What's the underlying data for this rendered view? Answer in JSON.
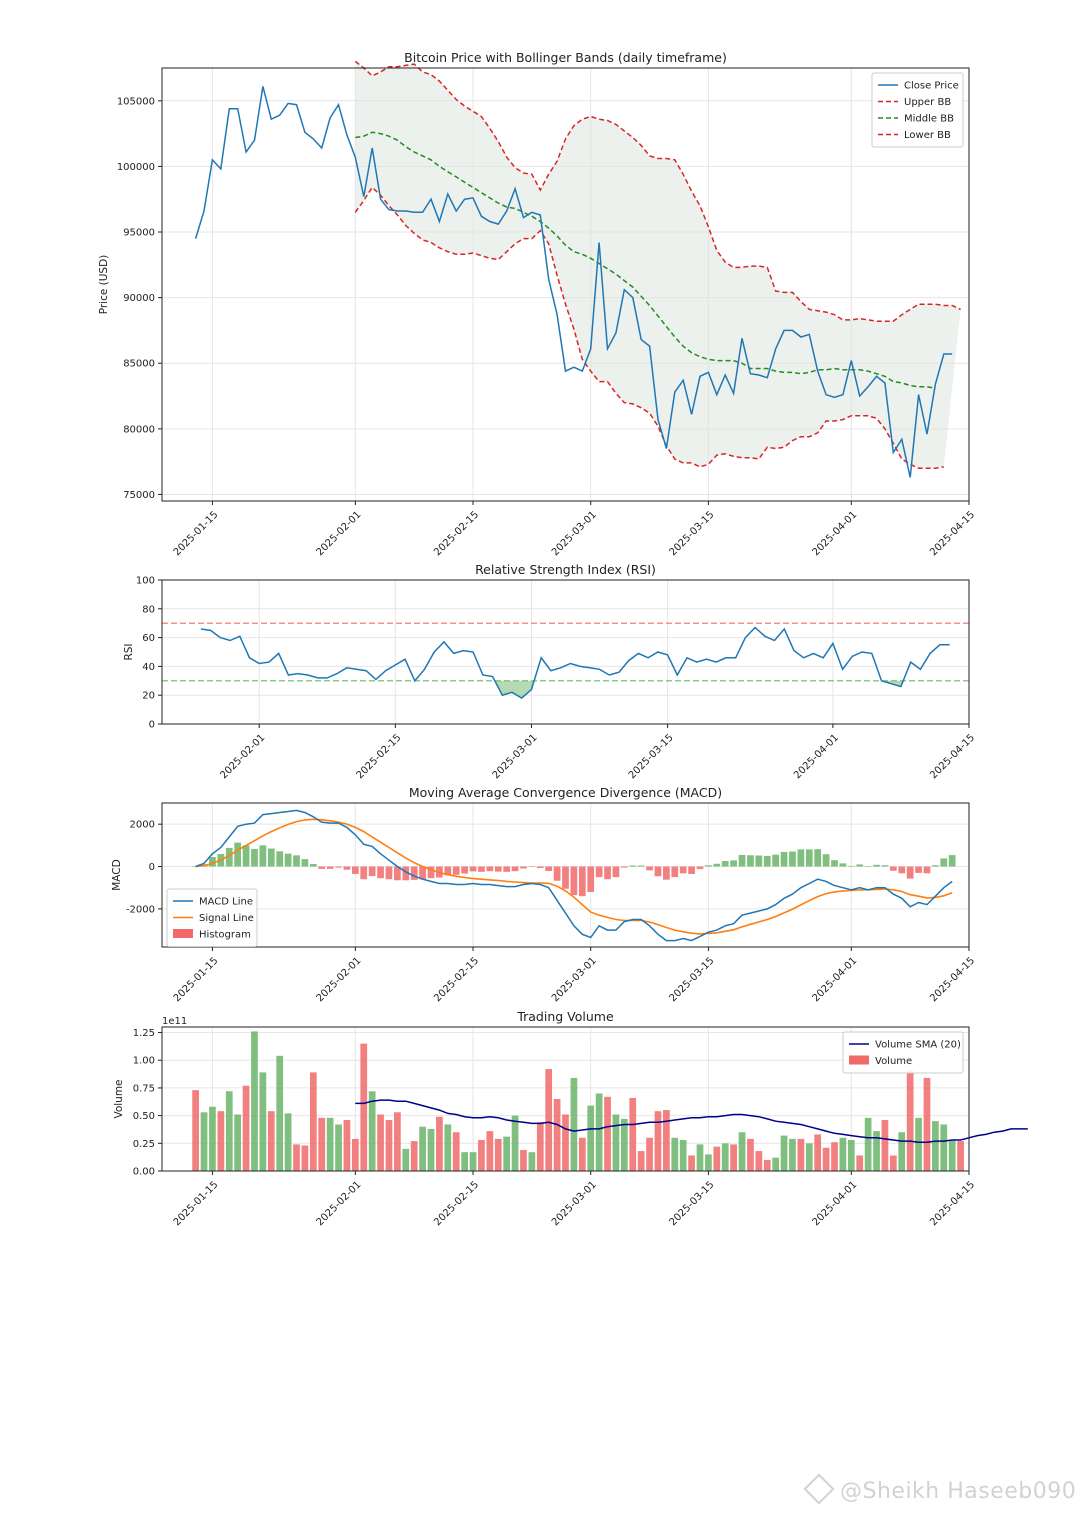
{
  "chart_data": [
    {
      "type": "line",
      "title": "Bitcoin Price with Bollinger Bands (daily timeframe)",
      "xlabel": "",
      "ylabel": "Price (USD)",
      "x_start": "2025-01-13",
      "xlim": [
        "2025-01-09",
        "2025-04-15"
      ],
      "ylim": [
        74500,
        107500
      ],
      "yticks": [
        75000,
        80000,
        85000,
        90000,
        95000,
        100000,
        105000
      ],
      "xticks": [
        "2025-01-15",
        "2025-02-01",
        "2025-02-15",
        "2025-03-01",
        "2025-03-15",
        "2025-04-01",
        "2025-04-15"
      ],
      "grid": true,
      "legend": "top-right",
      "series": [
        {
          "name": "Close Price",
          "color": "#1f77b4",
          "style": "solid",
          "start": "2025-01-13",
          "values": [
            94500,
            96600,
            100500,
            99800,
            104400,
            104400,
            101100,
            102000,
            106100,
            103600,
            103900,
            104800,
            104700,
            102600,
            102100,
            101400,
            103700,
            104700,
            102400,
            100700,
            97700,
            101400,
            97500,
            96700,
            96600,
            96600,
            96500,
            96500,
            97500,
            95800,
            97900,
            96600,
            97500,
            97600,
            96200,
            95800,
            95600,
            96600,
            98300,
            96100,
            96500,
            96300,
            91400,
            88700,
            84400,
            84700,
            84400,
            86100,
            94200,
            86100,
            87300,
            90600,
            90000,
            86800,
            86300,
            80700,
            78500,
            82800,
            83700,
            81100,
            84000,
            84300,
            82600,
            84100,
            82700,
            86900,
            84200,
            84100,
            83900,
            86100,
            87500,
            87500,
            87000,
            87200,
            84400,
            82600,
            82400,
            82600,
            85200,
            82500,
            83200,
            84000,
            83500,
            78200,
            79200,
            76300,
            82600,
            79600,
            83400,
            85700,
            85700
          ]
        },
        {
          "name": "Upper BB",
          "color": "#d62728",
          "style": "dashed",
          "start": "2025-02-01",
          "values": [
            108000,
            107500,
            106900,
            107200,
            107600,
            107600,
            107700,
            107800,
            107200,
            107000,
            106500,
            105800,
            105100,
            104600,
            104200,
            103800,
            102900,
            101900,
            100700,
            99900,
            99500,
            99400,
            98200,
            99400,
            100400,
            102100,
            103100,
            103600,
            103800,
            103600,
            103500,
            103200,
            102700,
            102200,
            101600,
            100800,
            100600,
            100600,
            100500,
            99400,
            98100,
            97000,
            95400,
            93600,
            92700,
            92300,
            92300,
            92400,
            92400,
            92300,
            90500,
            90400,
            90400,
            89700,
            89100,
            89000,
            88900,
            88700,
            88300,
            88300,
            88400,
            88300,
            88200,
            88200,
            88200,
            88700,
            89100,
            89500,
            89500,
            89500,
            89400,
            89400,
            89100
          ]
        },
        {
          "name": "Middle BB",
          "color": "#228B22",
          "style": "dashed",
          "start": "2025-02-01",
          "values": [
            102200,
            102300,
            102600,
            102500,
            102300,
            102000,
            101500,
            101100,
            100800,
            100500,
            100000,
            99600,
            99200,
            98800,
            98400,
            98000,
            97600,
            97200,
            96900,
            96800,
            96500,
            96200,
            95800,
            95300,
            94700,
            94000,
            93500,
            93300,
            93000,
            92600,
            92200,
            91800,
            91300,
            90800,
            90100,
            89400,
            88600,
            87800,
            87000,
            86300,
            85800,
            85500,
            85300,
            85200,
            85200,
            85200,
            85000,
            84600,
            84600,
            84600,
            84400,
            84300,
            84300,
            84200,
            84300,
            84500,
            84500,
            84600,
            84500,
            84500,
            84500,
            84400,
            84200,
            84000,
            83600,
            83500,
            83300,
            83200,
            83200,
            83100
          ]
        },
        {
          "name": "Lower BB",
          "color": "#d62728",
          "style": "dashed",
          "start": "2025-02-01",
          "values": [
            96500,
            97400,
            98400,
            97800,
            97000,
            96300,
            95500,
            94900,
            94400,
            94200,
            93800,
            93500,
            93300,
            93300,
            93400,
            93200,
            93000,
            92900,
            93500,
            94100,
            94500,
            94500,
            95100,
            94100,
            91700,
            89500,
            87600,
            85300,
            84400,
            83600,
            83600,
            82700,
            82000,
            81900,
            81600,
            81200,
            80200,
            78700,
            77700,
            77400,
            77400,
            77100,
            77300,
            78000,
            78100,
            77900,
            77800,
            77800,
            77700,
            78600,
            78500,
            78600,
            79100,
            79400,
            79400,
            79700,
            80600,
            80600,
            80700,
            81000,
            81000,
            81000,
            80800,
            80000,
            78900,
            77700,
            77300,
            77000,
            77000,
            77000,
            77100
          ]
        }
      ],
      "band_fill": "#dfe6df"
    },
    {
      "type": "line",
      "title": "Relative Strength Index (RSI)",
      "xlabel": "",
      "ylabel": "RSI",
      "xlim": [
        "2025-01-22",
        "2025-04-15"
      ],
      "ylim": [
        0,
        100
      ],
      "yticks": [
        0,
        20,
        40,
        60,
        80,
        100
      ],
      "xticks": [
        "2025-02-01",
        "2025-02-15",
        "2025-03-01",
        "2025-03-15",
        "2025-04-01",
        "2025-04-15"
      ],
      "grid": true,
      "overbought": 70,
      "oversold": 30,
      "series": [
        {
          "name": "RSI",
          "color": "#1f77b4",
          "start": "2025-01-26",
          "values": [
            66,
            65,
            60,
            58,
            61,
            46,
            42,
            43,
            49,
            34,
            35,
            34,
            32,
            32,
            35,
            39,
            38,
            37,
            31,
            37,
            41,
            45,
            30,
            38,
            50,
            57,
            49,
            51,
            50,
            34,
            33,
            20,
            22,
            18,
            24,
            46,
            37,
            39,
            42,
            40,
            39,
            38,
            34,
            36,
            44,
            49,
            46,
            50,
            48,
            34,
            46,
            43,
            45,
            43,
            46,
            46,
            60,
            67,
            61,
            58,
            66,
            51,
            46,
            49,
            46,
            56,
            38,
            47,
            50,
            49,
            30,
            28,
            26,
            43,
            38,
            49,
            55,
            55
          ]
        }
      ]
    },
    {
      "type": "line",
      "title": "Moving Average Convergence Divergence (MACD)",
      "xlabel": "",
      "ylabel": "MACD",
      "xlim": [
        "2025-01-09",
        "2025-04-15"
      ],
      "ylim": [
        -3800,
        3000
      ],
      "yticks": [
        -2000,
        0,
        2000
      ],
      "xticks": [
        "2025-01-15",
        "2025-02-01",
        "2025-02-15",
        "2025-03-01",
        "2025-03-15",
        "2025-04-01",
        "2025-04-15"
      ],
      "grid": true,
      "legend": "bottom-left",
      "series": [
        {
          "name": "MACD Line",
          "color": "#1f77b4",
          "start": "2025-01-13",
          "values": [
            0,
            150,
            600,
            900,
            1400,
            1900,
            2000,
            2050,
            2450,
            2500,
            2550,
            2600,
            2650,
            2550,
            2350,
            2100,
            2050,
            2050,
            1850,
            1500,
            1050,
            950,
            600,
            300,
            0,
            -250,
            -450,
            -600,
            -700,
            -800,
            -800,
            -850,
            -850,
            -800,
            -850,
            -850,
            -900,
            -950,
            -950,
            -850,
            -800,
            -850,
            -1000,
            -1600,
            -2200,
            -2800,
            -3200,
            -3350,
            -2800,
            -3000,
            -3000,
            -2600,
            -2500,
            -2500,
            -2800,
            -3200,
            -3500,
            -3500,
            -3400,
            -3500,
            -3300,
            -3100,
            -3000,
            -2800,
            -2700,
            -2300,
            -2200,
            -2100,
            -2000,
            -1800,
            -1500,
            -1300,
            -1000,
            -800,
            -600,
            -700,
            -900,
            -1000,
            -1100,
            -1000,
            -1100,
            -1000,
            -1000,
            -1300,
            -1500,
            -1900,
            -1700,
            -1800,
            -1400,
            -1000,
            -700
          ]
        },
        {
          "name": "Signal Line",
          "color": "#ff7f0e",
          "start": "2025-01-13",
          "values": [
            0,
            40,
            150,
            310,
            520,
            770,
            1000,
            1220,
            1450,
            1650,
            1830,
            1990,
            2120,
            2200,
            2230,
            2210,
            2160,
            2100,
            2000,
            1850,
            1650,
            1400,
            1150,
            900,
            650,
            400,
            180,
            0,
            -150,
            -280,
            -380,
            -460,
            -520,
            -570,
            -600,
            -630,
            -660,
            -700,
            -730,
            -760,
            -780,
            -780,
            -790,
            -930,
            -1150,
            -1450,
            -1800,
            -2150,
            -2300,
            -2400,
            -2500,
            -2550,
            -2550,
            -2550,
            -2620,
            -2740,
            -2880,
            -3000,
            -3080,
            -3150,
            -3180,
            -3160,
            -3130,
            -3060,
            -2990,
            -2850,
            -2730,
            -2620,
            -2500,
            -2360,
            -2190,
            -2010,
            -1810,
            -1610,
            -1420,
            -1280,
            -1200,
            -1150,
            -1130,
            -1100,
            -1100,
            -1080,
            -1060,
            -1100,
            -1180,
            -1330,
            -1400,
            -1480,
            -1460,
            -1380,
            -1240
          ]
        }
      ],
      "histogram": {
        "name": "Histogram",
        "pos_color": "#6ab46a",
        "neg_color": "#f06a6a"
      }
    },
    {
      "type": "bar",
      "title": "Trading Volume",
      "xlabel": "",
      "ylabel": "Volume",
      "scale_label": "1e11",
      "xlim": [
        "2025-01-09",
        "2025-04-15"
      ],
      "ylim": [
        0,
        1.3
      ],
      "yticks": [
        0.0,
        0.25,
        0.5,
        0.75,
        1.0,
        1.25
      ],
      "ytick_labels": [
        "0.00",
        "0.25",
        "0.50",
        "0.75",
        "1.00",
        "1.25"
      ],
      "xticks": [
        "2025-01-15",
        "2025-02-01",
        "2025-02-15",
        "2025-03-01",
        "2025-03-15",
        "2025-04-01",
        "2025-04-15"
      ],
      "grid": true,
      "legend": "top-right",
      "bar_colors": {
        "up": "#6ab46a",
        "down": "#f06a6a"
      },
      "volume": {
        "name": "Volume",
        "start": "2025-01-13",
        "values": [
          0.73,
          0.53,
          0.58,
          0.54,
          0.72,
          0.51,
          0.77,
          1.26,
          0.89,
          0.54,
          1.04,
          0.52,
          0.24,
          0.23,
          0.89,
          0.48,
          0.48,
          0.42,
          0.46,
          0.29,
          1.15,
          0.72,
          0.51,
          0.46,
          0.53,
          0.2,
          0.27,
          0.4,
          0.38,
          0.49,
          0.42,
          0.35,
          0.17,
          0.17,
          0.28,
          0.36,
          0.29,
          0.31,
          0.5,
          0.19,
          0.17,
          0.44,
          0.92,
          0.65,
          0.51,
          0.84,
          0.3,
          0.59,
          0.7,
          0.67,
          0.51,
          0.47,
          0.66,
          0.18,
          0.3,
          0.54,
          0.55,
          0.3,
          0.28,
          0.14,
          0.24,
          0.15,
          0.22,
          0.25,
          0.24,
          0.35,
          0.29,
          0.18,
          0.1,
          0.12,
          0.32,
          0.29,
          0.29,
          0.25,
          0.33,
          0.21,
          0.26,
          0.3,
          0.28,
          0.14,
          0.48,
          0.36,
          0.46,
          0.14,
          0.35,
          0.91,
          0.48,
          0.84,
          0.45,
          0.42,
          0.28,
          0.27
        ]
      },
      "sma": {
        "name": "Volume SMA (20)",
        "color": "#00008b",
        "start": "2025-02-01",
        "values": [
          0.61,
          0.61,
          0.63,
          0.64,
          0.64,
          0.63,
          0.63,
          0.61,
          0.59,
          0.57,
          0.55,
          0.52,
          0.51,
          0.49,
          0.48,
          0.48,
          0.49,
          0.48,
          0.46,
          0.45,
          0.44,
          0.43,
          0.43,
          0.44,
          0.42,
          0.38,
          0.36,
          0.37,
          0.38,
          0.38,
          0.4,
          0.41,
          0.42,
          0.42,
          0.43,
          0.44,
          0.44,
          0.45,
          0.46,
          0.47,
          0.48,
          0.48,
          0.49,
          0.49,
          0.5,
          0.51,
          0.51,
          0.5,
          0.49,
          0.47,
          0.45,
          0.44,
          0.43,
          0.42,
          0.4,
          0.38,
          0.36,
          0.34,
          0.33,
          0.32,
          0.31,
          0.3,
          0.3,
          0.29,
          0.28,
          0.27,
          0.27,
          0.26,
          0.26,
          0.27,
          0.27,
          0.28,
          0.28,
          0.3,
          0.32,
          0.33,
          0.35,
          0.36,
          0.38,
          0.38,
          0.38
        ]
      }
    }
  ],
  "watermark": {
    "text": "@Sheikh Haseeb090"
  }
}
